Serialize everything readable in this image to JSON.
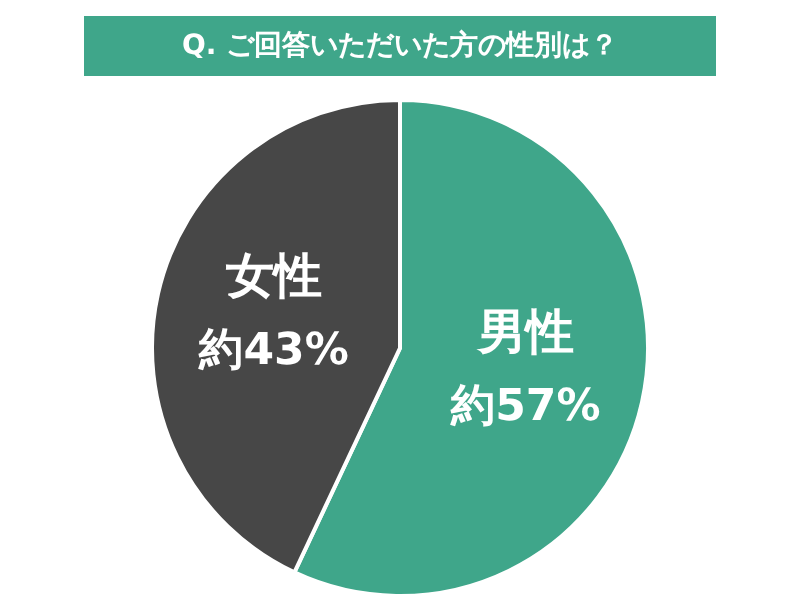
{
  "chart_data": {
    "type": "pie",
    "title": "Q. ご回答いただいた方の性別は？",
    "categories": [
      "男性",
      "女性"
    ],
    "values": [
      57,
      43
    ],
    "colors": [
      "#3fa68a",
      "#474747"
    ],
    "value_labels": [
      "約57%",
      "約43%"
    ]
  }
}
